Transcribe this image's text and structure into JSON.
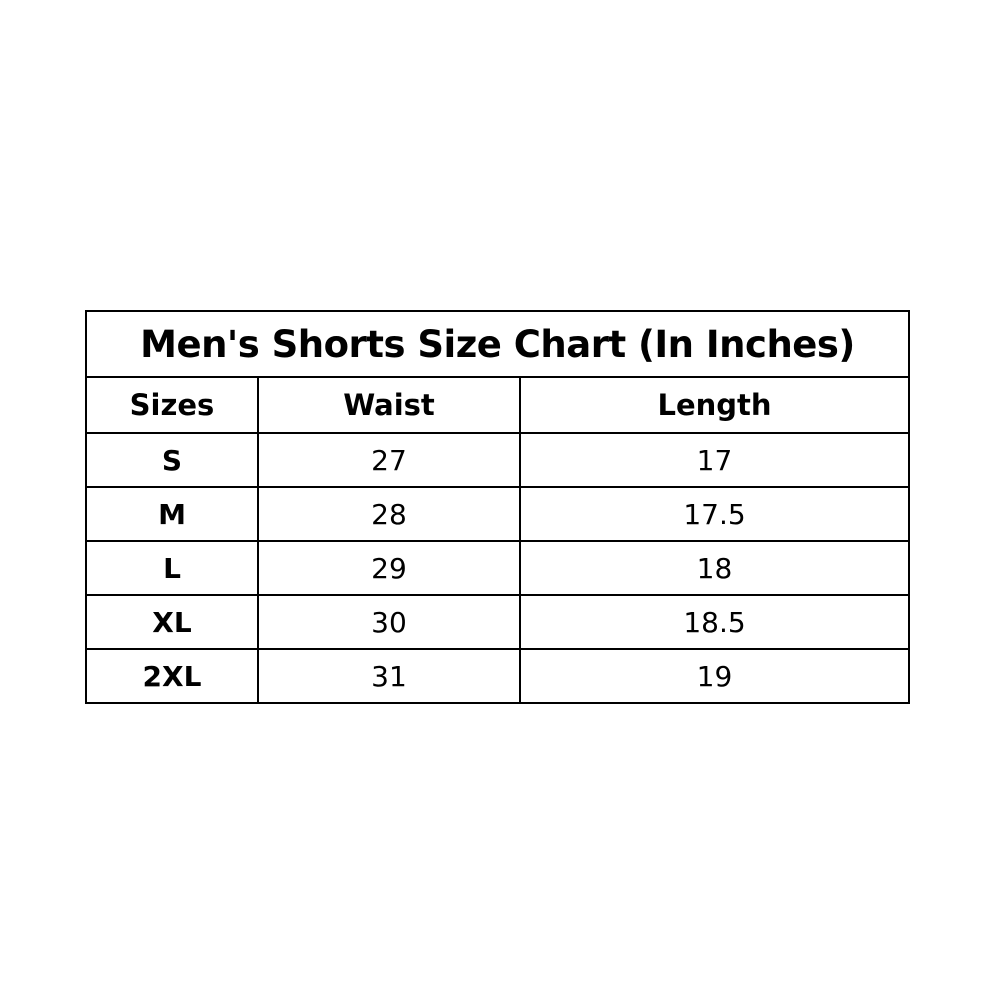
{
  "title": "Men's Shorts Size Chart (In Inches)",
  "headers": [
    "Sizes",
    "Waist",
    "Length"
  ],
  "rows": [
    [
      "S",
      "27",
      "17"
    ],
    [
      "M",
      "28",
      "17.5"
    ],
    [
      "L",
      "29",
      "18"
    ],
    [
      "XL",
      "30",
      "18.5"
    ],
    [
      "2XL",
      "31",
      "19"
    ]
  ]
}
